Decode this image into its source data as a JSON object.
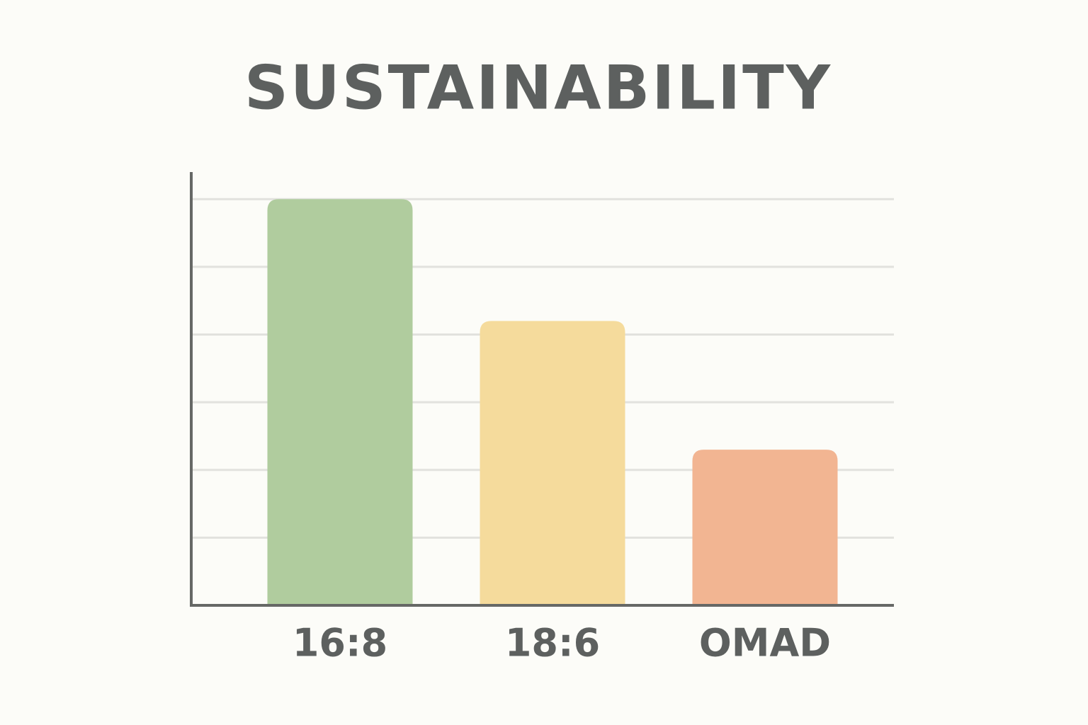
{
  "chart_data": {
    "type": "bar",
    "title": "SUSTAINABILITY",
    "categories": [
      "16:8",
      "18:6",
      "OMAD"
    ],
    "values": [
      6,
      4.2,
      2.3
    ],
    "colors": [
      "#b0cc9e",
      "#f5db9c",
      "#f2b592"
    ],
    "ylim": [
      0,
      6.4
    ],
    "yticks": [
      0,
      1,
      2,
      3,
      4,
      5,
      6
    ],
    "grid": true
  }
}
